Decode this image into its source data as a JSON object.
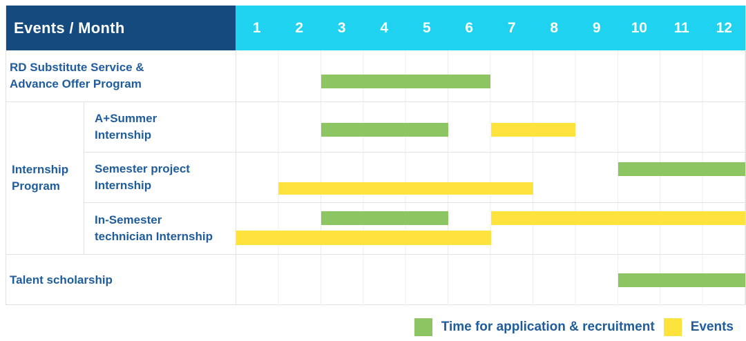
{
  "colors": {
    "header_left_bg": "#154A7E",
    "header_months_bg": "#1FD3F0",
    "bar_green": "#8CC561",
    "bar_yellow": "#FFE33D",
    "label_text": "#1E5C9E",
    "grid_line": "#E2E2E2"
  },
  "chart_data": {
    "type": "bar",
    "variant": "gantt",
    "title": "Events / Month",
    "x_label": "Month",
    "x": [
      1,
      2,
      3,
      4,
      5,
      6,
      7,
      8,
      9,
      10,
      11,
      12
    ],
    "x_range": [
      1,
      12
    ],
    "months_total": 12,
    "grid": true,
    "legend_position": "bottom-right",
    "series_legend": [
      {
        "name": "Time for application & recruitment",
        "color_name": "green",
        "color": "#8CC561"
      },
      {
        "name": "Events",
        "color_name": "yellow",
        "color": "#FFE33D"
      }
    ],
    "group_cell": {
      "label": "Internship Program",
      "label_lines": [
        "Internship",
        "Program"
      ]
    },
    "rows": [
      {
        "group": "",
        "label": "RD Substitute Service & Advance Offer Program",
        "label_lines": [
          "RD Substitute Service &",
          "Advance Offer Program"
        ],
        "bars": [
          {
            "series": "Time for application & recruitment",
            "color": "green",
            "start_month": 3,
            "end_month": 6,
            "line": "a"
          }
        ]
      },
      {
        "group": "Internship Program",
        "label": "A+Summer Internship",
        "label_lines": [
          "A+Summer",
          "Internship"
        ],
        "bars": [
          {
            "series": "Time for application & recruitment",
            "color": "green",
            "start_month": 3,
            "end_month": 5,
            "line": "a"
          },
          {
            "series": "Events",
            "color": "yellow",
            "start_month": 7,
            "end_month": 8,
            "line": "a"
          }
        ]
      },
      {
        "group": "Internship Program",
        "label": "Semester project Internship",
        "label_lines": [
          "Semester project",
          "Internship"
        ],
        "bars": [
          {
            "series": "Time for application & recruitment",
            "color": "green",
            "start_month": 10,
            "end_month": 12,
            "line": "a"
          },
          {
            "series": "Events",
            "color": "yellow",
            "start_month": 2,
            "end_month": 7,
            "line": "b"
          }
        ]
      },
      {
        "group": "Internship Program",
        "label": "In-Semester technician Internship",
        "label_lines": [
          "In-Semester",
          "technician Internship"
        ],
        "bars": [
          {
            "series": "Time for application & recruitment",
            "color": "green",
            "start_month": 3,
            "end_month": 5,
            "line": "a"
          },
          {
            "series": "Events",
            "color": "yellow",
            "start_month": 7,
            "end_month": 12,
            "line": "a"
          },
          {
            "series": "Events",
            "color": "yellow",
            "start_month": 1,
            "end_month": 6,
            "line": "b"
          }
        ]
      },
      {
        "group": "",
        "label": "Talent scholarship",
        "label_lines": [
          "Talent scholarship"
        ],
        "bars": [
          {
            "series": "Time for application & recruitment",
            "color": "green",
            "start_month": 10,
            "end_month": 12,
            "line": "a"
          }
        ]
      }
    ],
    "legend": [
      {
        "label": "Time for application & recruitment",
        "color": "#8CC561"
      },
      {
        "label": "Events",
        "color": "#FFE33D"
      }
    ]
  }
}
